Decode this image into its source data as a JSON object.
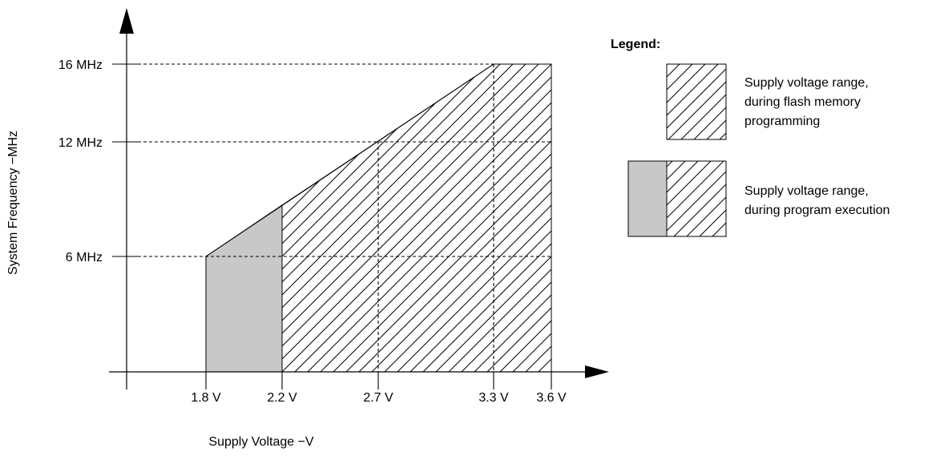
{
  "chart_data": {
    "type": "area",
    "xlabel": "Supply Voltage −V",
    "ylabel": "System Frequency −MHz",
    "x_ticks": [
      {
        "value": 1.8,
        "label": "1.8 V"
      },
      {
        "value": 2.2,
        "label": "2.2 V"
      },
      {
        "value": 2.7,
        "label": "2.7 V"
      },
      {
        "value": 3.3,
        "label": "3.3 V"
      },
      {
        "value": 3.6,
        "label": "3.6 V"
      }
    ],
    "y_ticks": [
      {
        "value": 6,
        "label": "6 MHz"
      },
      {
        "value": 12,
        "label": "12 MHz"
      },
      {
        "value": 16,
        "label": "16 MHz"
      }
    ],
    "boundary": {
      "x": [
        1.8,
        3.3,
        3.6
      ],
      "y": [
        6,
        16,
        16
      ]
    },
    "regions": [
      {
        "id": "program-execution-only",
        "x_range": [
          1.8,
          2.2
        ],
        "fill": "gray",
        "color": "#c8c8c8"
      },
      {
        "id": "flash-programming",
        "x_range": [
          2.2,
          3.6
        ],
        "fill": "hatched",
        "color": "#000000"
      }
    ],
    "legend": {
      "title": "Legend:",
      "entries": [
        {
          "swatch": "hatched",
          "lines": [
            "Supply voltage range,",
            "during flash memory",
            "programming"
          ]
        },
        {
          "swatch": "gray+hatched",
          "lines": [
            "Supply voltage range,",
            "during program execution"
          ]
        }
      ]
    }
  }
}
